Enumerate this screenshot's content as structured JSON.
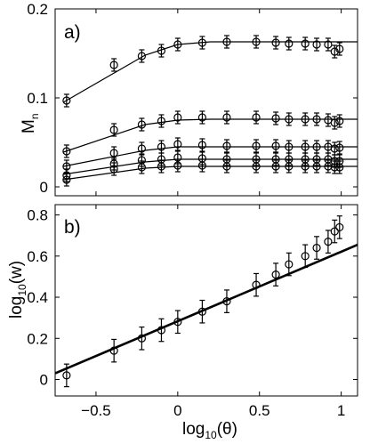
{
  "chart_data": [
    {
      "panel": "a)",
      "type": "line",
      "ylabel": {
        "main": "M",
        "sub": "n"
      },
      "xlim": [
        -0.75,
        1.1
      ],
      "ylim": [
        -0.01,
        0.2
      ],
      "yticks": [
        0,
        0.1,
        0.2
      ],
      "ytick_labels": [
        "0",
        "0.1",
        "0.2"
      ],
      "x": [
        -0.68,
        -0.39,
        -0.22,
        -0.1,
        0.0,
        0.15,
        0.3,
        0.48,
        0.6,
        0.68,
        0.78,
        0.85,
        0.92,
        0.96,
        0.99
      ],
      "series": [
        {
          "values": [
            0.097,
            0.137,
            0.147,
            0.153,
            0.16,
            0.162,
            0.163,
            0.163,
            0.162,
            0.161,
            0.161,
            0.16,
            0.16,
            0.152,
            0.155
          ],
          "error": 0.007,
          "fit": [
            [
              -0.7,
              0.095
            ],
            [
              -0.2,
              0.148
            ],
            [
              0.0,
              0.16
            ],
            [
              0.2,
              0.163
            ],
            [
              1.1,
              0.163
            ]
          ]
        },
        {
          "values": [
            0.04,
            0.064,
            0.07,
            0.074,
            0.078,
            0.078,
            0.078,
            0.078,
            0.077,
            0.076,
            0.076,
            0.076,
            0.075,
            0.072,
            0.074
          ],
          "error": 0.007,
          "fit": [
            [
              -0.7,
              0.039
            ],
            [
              -0.2,
              0.07
            ],
            [
              0.0,
              0.075
            ],
            [
              0.2,
              0.076
            ],
            [
              1.1,
              0.076
            ]
          ]
        },
        {
          "values": [
            0.023,
            0.038,
            0.043,
            0.045,
            0.048,
            0.047,
            0.046,
            0.046,
            0.046,
            0.045,
            0.045,
            0.045,
            0.045,
            0.043,
            0.044
          ],
          "error": 0.007,
          "fit": [
            [
              -0.7,
              0.023
            ],
            [
              -0.2,
              0.041
            ],
            [
              0.0,
              0.045
            ],
            [
              0.2,
              0.045
            ],
            [
              1.1,
              0.045
            ]
          ]
        },
        {
          "values": [
            0.013,
            0.026,
            0.03,
            0.031,
            0.033,
            0.032,
            0.031,
            0.031,
            0.031,
            0.031,
            0.031,
            0.031,
            0.031,
            0.029,
            0.029
          ],
          "error": 0.007,
          "fit": [
            [
              -0.7,
              0.014
            ],
            [
              -0.2,
              0.028
            ],
            [
              0.0,
              0.031
            ],
            [
              0.2,
              0.031
            ],
            [
              1.1,
              0.031
            ]
          ]
        },
        {
          "values": [
            0.008,
            0.02,
            0.022,
            0.023,
            0.024,
            0.024,
            0.023,
            0.023,
            0.023,
            0.023,
            0.023,
            0.023,
            0.023,
            0.022,
            0.022
          ],
          "error": 0.007,
          "fit": [
            [
              -0.7,
              0.008
            ],
            [
              -0.2,
              0.021
            ],
            [
              0.0,
              0.023
            ],
            [
              0.2,
              0.023
            ],
            [
              1.1,
              0.023
            ]
          ]
        }
      ]
    },
    {
      "panel": "b)",
      "type": "scatter",
      "ylabel": {
        "main": "log",
        "sub": "10",
        "rest": "(w)"
      },
      "xlabel": {
        "main": "log",
        "sub": "10",
        "rest": "(θ)"
      },
      "xlim": [
        -0.75,
        1.1
      ],
      "ylim": [
        -0.08,
        0.85
      ],
      "xticks": [
        -0.5,
        0,
        0.5,
        1
      ],
      "xtick_labels": [
        "−0.5",
        "0",
        "0.5",
        "1"
      ],
      "yticks": [
        0,
        0.2,
        0.4,
        0.6,
        0.8
      ],
      "ytick_labels": [
        "0",
        "0.2",
        "0.4",
        "0.6",
        "0.8"
      ],
      "x": [
        -0.68,
        -0.39,
        -0.22,
        -0.1,
        0.0,
        0.15,
        0.3,
        0.48,
        0.6,
        0.68,
        0.78,
        0.85,
        0.92,
        0.96,
        0.99
      ],
      "y": [
        0.02,
        0.14,
        0.2,
        0.24,
        0.28,
        0.33,
        0.38,
        0.46,
        0.51,
        0.56,
        0.6,
        0.64,
        0.67,
        0.72,
        0.74
      ],
      "error": 0.055,
      "fit": [
        [
          -0.75,
          0.03
        ],
        [
          1.1,
          0.655
        ]
      ]
    }
  ]
}
